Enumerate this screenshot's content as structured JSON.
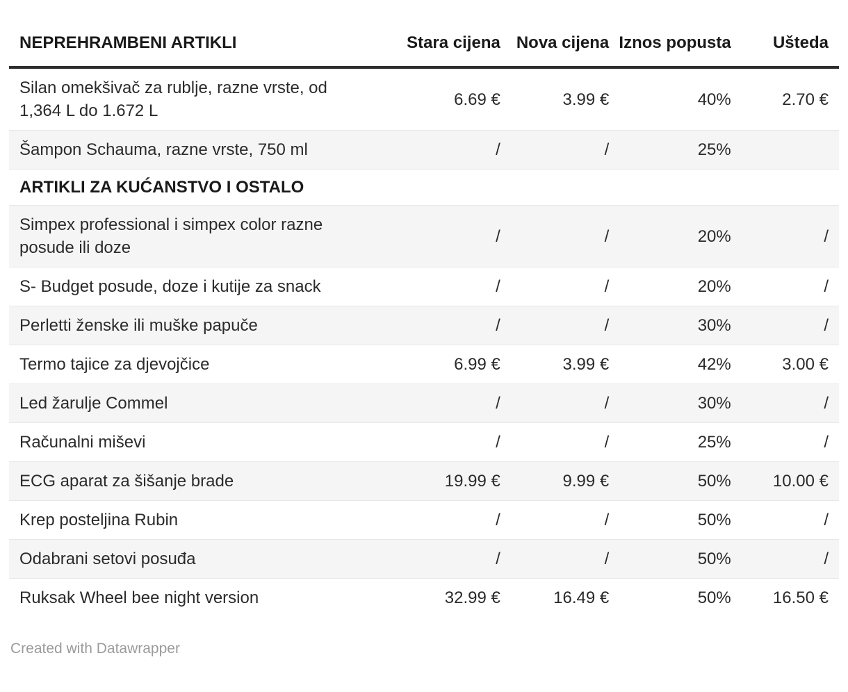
{
  "chart_data": {
    "type": "table",
    "columns": [
      "NEPREHRAMBENI ARTIKLI",
      "Stara cijena",
      "Nova cijena",
      "Iznos popusta",
      "Ušteda"
    ],
    "rows": [
      {
        "type": "data",
        "cells": [
          "Silan omekšivač za rublje, razne vrste, od 1,364 L do 1.672 L",
          "6.69 €",
          "3.99 €",
          "40%",
          "2.70 €"
        ]
      },
      {
        "type": "data",
        "cells": [
          "Šampon Schauma, razne vrste, 750 ml",
          "/",
          "/",
          "25%",
          ""
        ]
      },
      {
        "type": "section",
        "label": "ARTIKLI ZA KUĆANSTVO I OSTALO"
      },
      {
        "type": "data",
        "cells": [
          "Simpex professional i simpex color razne posude ili doze",
          "/",
          "/",
          "20%",
          "/"
        ]
      },
      {
        "type": "data",
        "cells": [
          "S- Budget posude, doze i kutije za snack",
          "/",
          "/",
          "20%",
          "/"
        ]
      },
      {
        "type": "data",
        "cells": [
          "Perletti ženske ili muške papuče",
          "/",
          "/",
          "30%",
          "/"
        ]
      },
      {
        "type": "data",
        "cells": [
          "Termo tajice za djevojčice",
          "6.99 €",
          "3.99 €",
          "42%",
          "3.00 €"
        ]
      },
      {
        "type": "data",
        "cells": [
          "Led žarulje Commel",
          "/",
          "/",
          "30%",
          "/"
        ]
      },
      {
        "type": "data",
        "cells": [
          "Računalni miševi",
          "/",
          "/",
          "25%",
          "/"
        ]
      },
      {
        "type": "data",
        "cells": [
          "ECG aparat za šišanje brade",
          "19.99 €",
          "9.99 €",
          "50%",
          "10.00 €"
        ]
      },
      {
        "type": "data",
        "cells": [
          "Krep posteljina Rubin",
          "/",
          "/",
          "50%",
          "/"
        ]
      },
      {
        "type": "data",
        "cells": [
          "Odabrani setovi posuđa",
          "/",
          "/",
          "50%",
          "/"
        ]
      },
      {
        "type": "data",
        "cells": [
          "Ruksak Wheel bee night version",
          "32.99 €",
          "16.49 €",
          "50%",
          "16.50 €"
        ]
      }
    ],
    "layout_hints": {
      "zebra_striping": true,
      "numeric_columns_right_aligned": true,
      "header_rule": "thick dark line under header",
      "column_widths_pct": [
        46,
        13.2,
        13.1,
        14.7,
        13
      ]
    }
  },
  "footer": {
    "credit": "Created with Datawrapper"
  },
  "colors": {
    "text": "#2b2b2b",
    "header_text": "#1a1a1a",
    "rule": "#2e2e2e",
    "divider": "#e7e7e7",
    "stripe": "#f5f5f5",
    "credit": "#9b9b9b",
    "bg": "#ffffff"
  }
}
